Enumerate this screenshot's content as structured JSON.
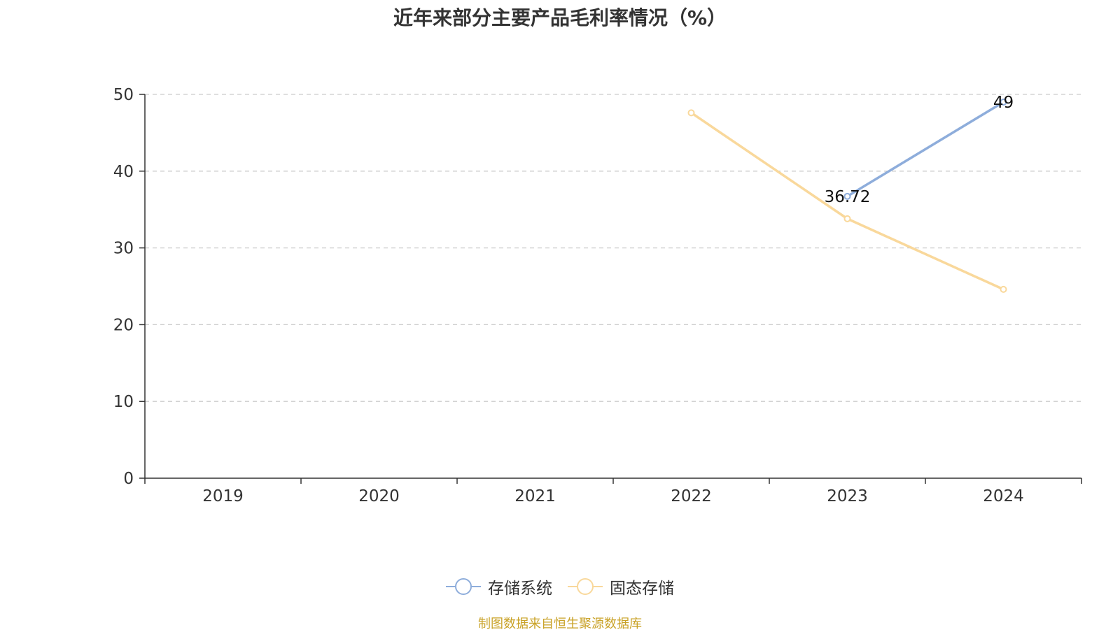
{
  "chart_data": {
    "type": "line",
    "title": "近年来部分主要产品毛利率情况（%）",
    "categories": [
      "2019",
      "2020",
      "2021",
      "2022",
      "2023",
      "2024"
    ],
    "series": [
      {
        "name": "存储系统",
        "values": [
          null,
          null,
          null,
          null,
          36.72,
          49
        ],
        "labels": [
          null,
          null,
          null,
          null,
          "36.72",
          "49"
        ],
        "color": "#8eaddb"
      },
      {
        "name": "固态存储",
        "values": [
          null,
          null,
          null,
          47.6,
          33.8,
          24.6
        ],
        "labels": [
          null,
          null,
          null,
          null,
          null,
          null
        ],
        "color": "#f9d89b"
      }
    ],
    "ylim": [
      0,
      50
    ],
    "yticks": [
      "0",
      "10",
      "20",
      "30",
      "40",
      "50"
    ],
    "grid": true,
    "legend_position": "bottom"
  },
  "source": {
    "text": "制图数据来自恒生聚源数据库",
    "color": "#c9a227"
  },
  "colors": {
    "axis": "#333333",
    "grid": "#cccccc",
    "text": "#333333"
  }
}
